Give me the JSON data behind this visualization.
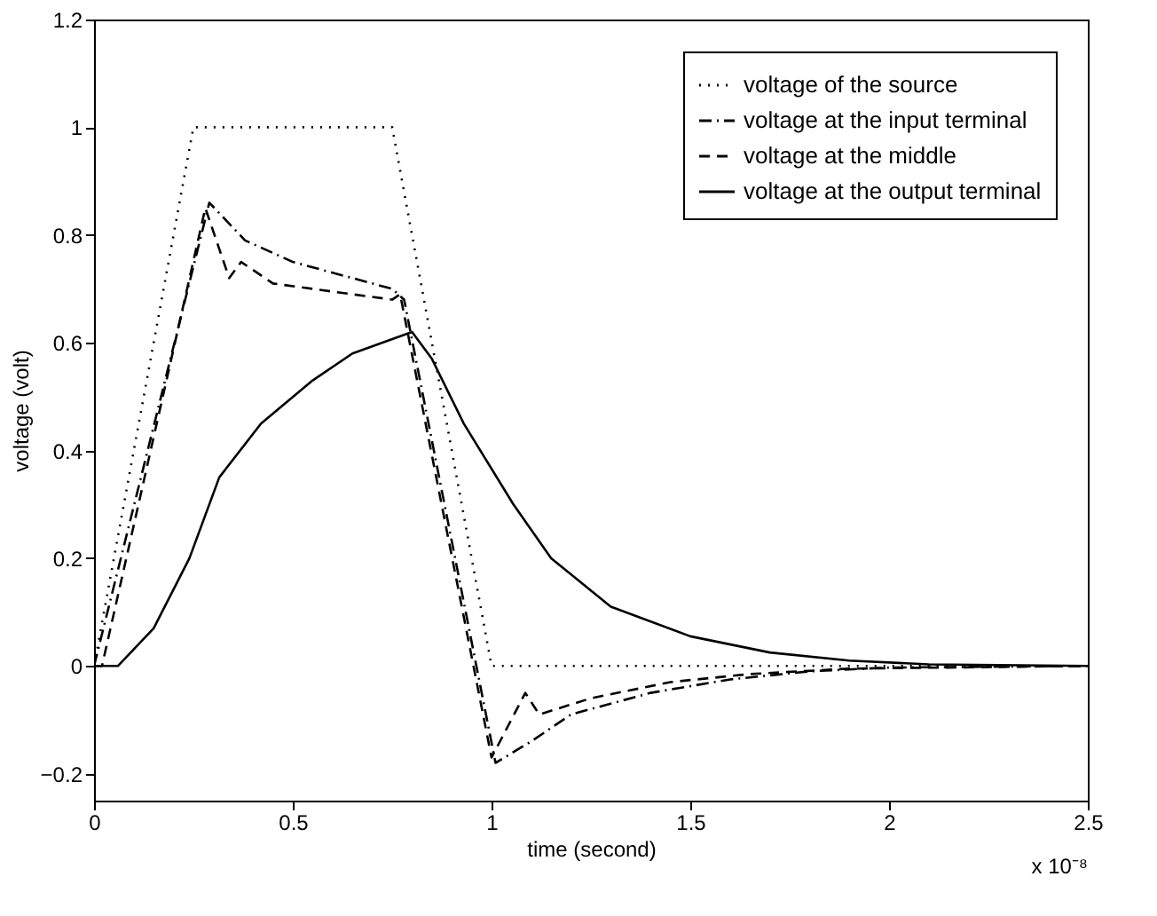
{
  "chart_data": {
    "type": "line",
    "xlabel": "time (second)",
    "ylabel": "voltage (volt)",
    "xlim": [
      0,
      2.5
    ],
    "xticks": [
      0,
      0.5,
      1,
      1.5,
      2,
      2.5
    ],
    "ylim": [
      -0.25,
      1.2
    ],
    "yticks": [
      -0.2,
      0,
      0.2,
      0.4,
      0.6,
      0.8,
      1,
      1.2
    ],
    "grid": false,
    "legend": "top right",
    "annotations": [
      "x 10⁻⁸"
    ],
    "series": [
      {
        "name": "voltage of the source",
        "color": "#000000",
        "line_style": "dotted",
        "x": [
          0,
          0.25,
          0.75,
          1.0,
          2.5
        ],
        "values": [
          0,
          1,
          1,
          0,
          0
        ]
      },
      {
        "name": "voltage at the input terminal",
        "color": "#000000",
        "line_style": "dashdot",
        "x": [
          0,
          0.29,
          0.38,
          0.5,
          0.75,
          0.78,
          1.01,
          1.1,
          1.2,
          1.4,
          1.6,
          1.8,
          2.0,
          2.5
        ],
        "values": [
          0,
          0.86,
          0.79,
          0.75,
          0.7,
          0.68,
          -0.18,
          -0.14,
          -0.09,
          -0.05,
          -0.025,
          -0.01,
          -0.003,
          0
        ]
      },
      {
        "name": "voltage at the middle",
        "color": "#000000",
        "line_style": "dashed",
        "x": [
          0,
          0.02,
          0.28,
          0.34,
          0.37,
          0.45,
          0.55,
          0.75,
          0.77,
          1.0,
          1.085,
          1.12,
          1.25,
          1.45,
          1.65,
          1.9,
          2.5
        ],
        "values": [
          0,
          0,
          0.85,
          0.72,
          0.75,
          0.71,
          0.7,
          0.68,
          0.69,
          -0.17,
          -0.05,
          -0.09,
          -0.06,
          -0.03,
          -0.015,
          -0.005,
          0
        ]
      },
      {
        "name": "voltage at the output terminal",
        "color": "#000000",
        "line_style": "solid",
        "x": [
          0,
          0.06,
          0.15,
          0.24,
          0.315,
          0.42,
          0.55,
          0.65,
          0.8,
          0.85,
          0.93,
          1.055,
          1.15,
          1.3,
          1.5,
          1.7,
          1.9,
          2.1,
          2.5
        ],
        "values": [
          0,
          0,
          0.07,
          0.2,
          0.35,
          0.45,
          0.53,
          0.58,
          0.62,
          0.57,
          0.45,
          0.3,
          0.2,
          0.11,
          0.055,
          0.025,
          0.01,
          0.003,
          0
        ]
      }
    ]
  }
}
